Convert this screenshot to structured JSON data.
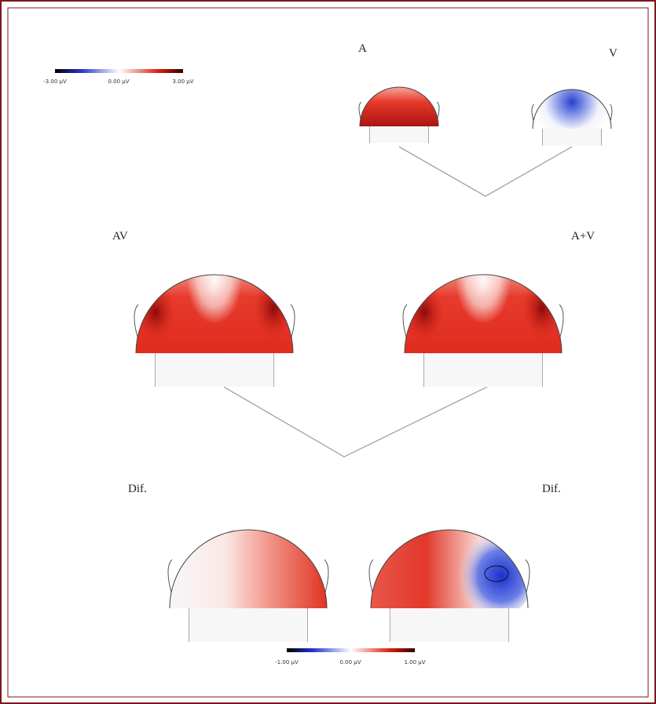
{
  "colorbars": [
    {
      "labels": [
        "-3.00 µV",
        "0.00 µV",
        "3.00 µV"
      ]
    },
    {
      "labels": [
        "-1.00 µV",
        "0.00 µV",
        "1.00 µV"
      ]
    }
  ],
  "maps": [
    {
      "label": "A"
    },
    {
      "label": "V"
    },
    {
      "label": "AV"
    },
    {
      "label": "A+V"
    },
    {
      "label": "Dif."
    },
    {
      "label": "Dif."
    }
  ]
}
